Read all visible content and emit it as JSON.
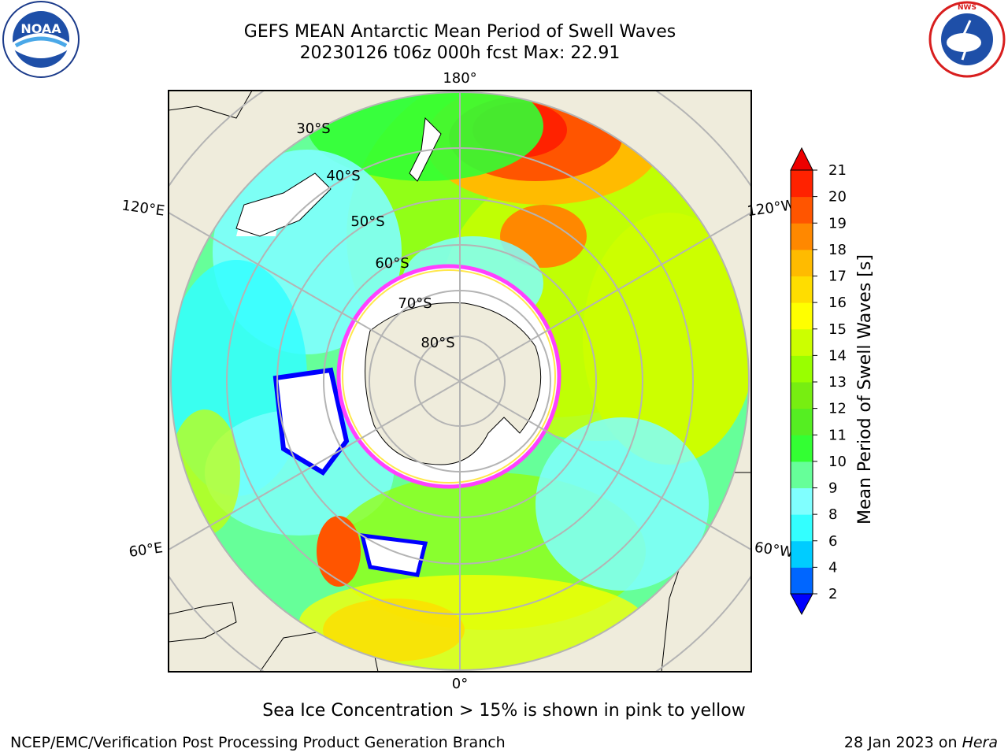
{
  "header": {
    "title_line1": "GEFS MEAN Antarctic Mean Period of Swell Waves",
    "title_line2": "20230126 t06z 000h fcst   Max: 22.91"
  },
  "logos": {
    "left": {
      "icon": "noaa-logo",
      "text": "NOAA"
    },
    "right": {
      "icon": "national-weather-service-logo",
      "text": "NATIONAL WEATHER SERVICE"
    }
  },
  "map": {
    "projection": "south-polar-stereographic",
    "longitude_labels": [
      "180°",
      "120°E",
      "120°W",
      "60°E",
      "60°W",
      "0°"
    ],
    "latitude_labels": [
      "30°S",
      "40°S",
      "50°S",
      "60°S",
      "70°S",
      "80°S"
    ],
    "colors": {
      "land": "#efecdc",
      "sea_ice": "#ff40ff",
      "graticule": "#b4b4b4"
    }
  },
  "colorbar": {
    "label": "Mean Period of Swell Waves [s]",
    "ticks": [
      "2",
      "4",
      "6",
      "8",
      "9",
      "10",
      "11",
      "12",
      "13",
      "14",
      "15",
      "16",
      "17",
      "18",
      "19",
      "20",
      "21"
    ],
    "colors": [
      "#0000ff",
      "#0066ff",
      "#00ccff",
      "#33ffff",
      "#80ffff",
      "#66ff99",
      "#33ff33",
      "#55ee22",
      "#77ee11",
      "#99ff00",
      "#ccff00",
      "#ffff00",
      "#ffdd00",
      "#ffbb00",
      "#ff8800",
      "#ff5500",
      "#ff2200",
      "#ee0000"
    ],
    "extend": "both"
  },
  "caption": "Sea Ice Concentration > 15% is shown in pink to yellow",
  "footer": {
    "left": "NCEP/EMC/Verification Post Processing Product Generation Branch",
    "right_date": "28 Jan 2023 on",
    "right_host": "Hera"
  }
}
